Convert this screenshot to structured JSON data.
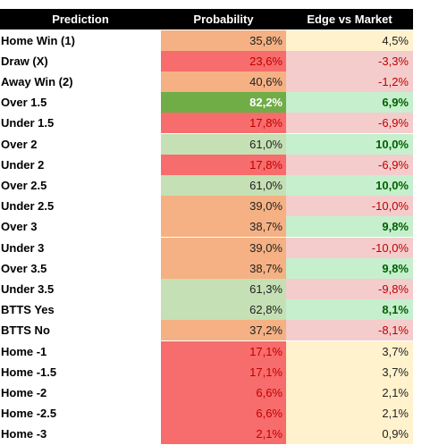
{
  "table": {
    "header": [
      "Prediction",
      "Probability",
      "Edge vs Market"
    ],
    "rows": [
      [
        "Home Win (1)",
        "35,8%",
        "4,5%"
      ],
      [
        "Draw (X)",
        "23,6%",
        "-3,3%"
      ],
      [
        "Away Win (2)",
        "40,6%",
        "-1,2%"
      ],
      [
        "Over 1.5",
        "82,2%",
        "6,9%"
      ],
      [
        "Under 1.5",
        "17,8%",
        "-6,9%"
      ],
      [
        "Over 2",
        "61,0%",
        "10,0%"
      ],
      [
        "Under 2",
        "17,8%",
        "-6,9%"
      ],
      [
        "Over 2.5",
        "61,0%",
        "10,0%"
      ],
      [
        "Under 2.5",
        "39,0%",
        "-10,0%"
      ],
      [
        "Over 3",
        "38,7%",
        "9,8%"
      ],
      [
        "Under 3",
        "39,0%",
        "-10,0%"
      ],
      [
        "Over 3.5",
        "38,7%",
        "9,8%"
      ],
      [
        "Under 3.5",
        "61,3%",
        "-9,8%"
      ],
      [
        "BTTS Yes",
        "62,8%",
        "8,1%"
      ],
      [
        "BTTS No",
        "37,2%",
        "-8,1%"
      ],
      [
        "Home -1",
        "17,1%",
        "3,7%"
      ],
      [
        "Home -1.5",
        "17,1%",
        "3,7%"
      ],
      [
        "Home -2",
        "6,6%",
        "2,1%"
      ],
      [
        "Home -2.5",
        "6,6%",
        "2,1%"
      ],
      [
        "Home -3",
        "2,1%",
        "0,9%"
      ]
    ]
  }
}
